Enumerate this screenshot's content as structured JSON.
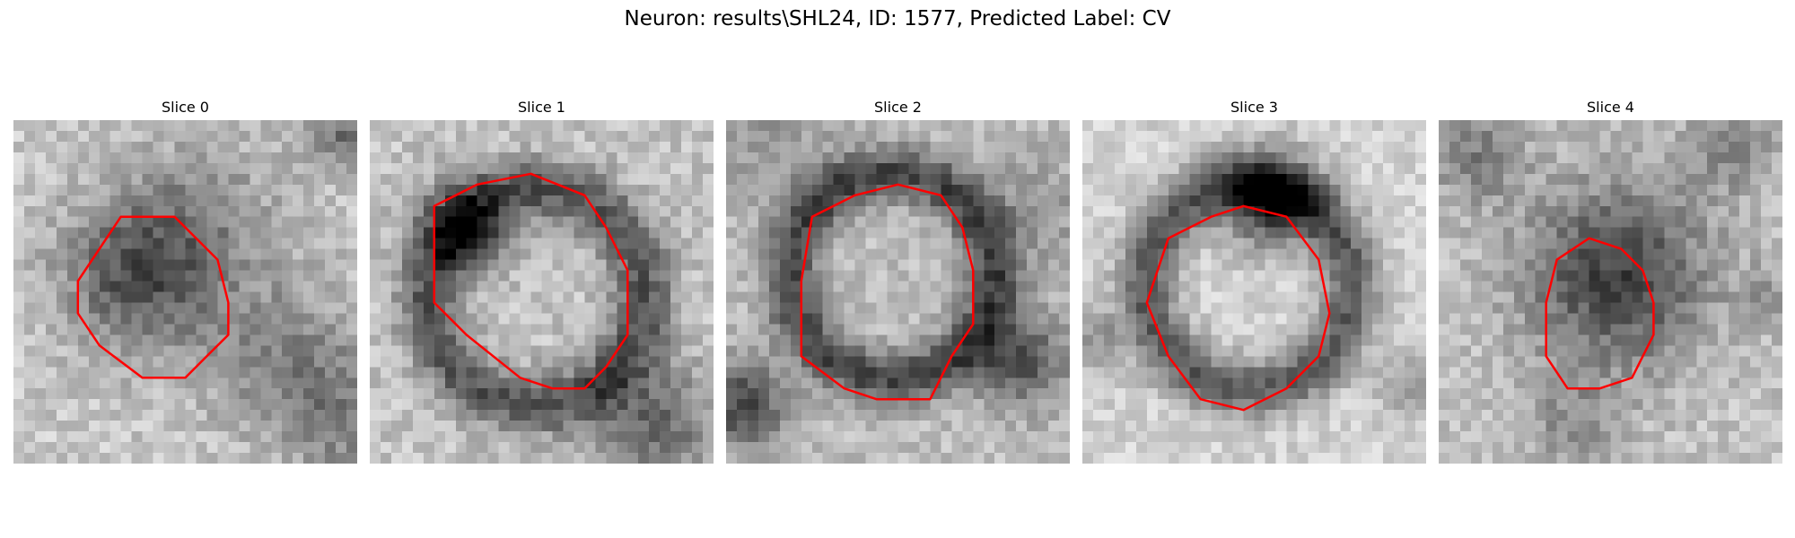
{
  "figure": {
    "title": "Neuron: results\\SHL24, ID: 1577, Predicted Label: CV"
  },
  "contour_color": "#ff0000",
  "panels": [
    {
      "title": "Slice 0",
      "image_description": "grayscale microscopy crop with a dark blob left of center, outlined by a red contour"
    },
    {
      "title": "Slice 1",
      "image_description": "grayscale microscopy crop with a large rounded dark-rimmed region, outlined by a red contour"
    },
    {
      "title": "Slice 2",
      "image_description": "grayscale microscopy crop with a light circular region surrounded by a dark ring, outlined by a red contour"
    },
    {
      "title": "Slice 3",
      "image_description": "grayscale microscopy crop with a light circular region and dark ring, red contour slightly lower"
    },
    {
      "title": "Slice 4",
      "image_description": "grayscale microscopy crop with a dark circular blob in the center, outlined by a red contour"
    }
  ]
}
